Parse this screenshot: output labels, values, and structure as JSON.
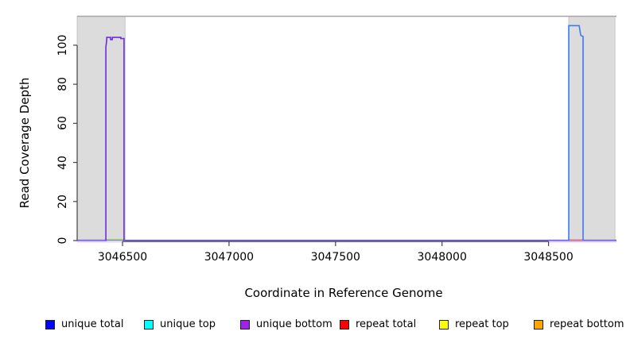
{
  "chart_data": {
    "type": "line",
    "title": "",
    "xlabel": "Coordinate in Reference Genome",
    "ylabel": "Read Coverage Depth",
    "xlim": [
      3046287,
      3048819
    ],
    "ylim": [
      0,
      114.8
    ],
    "xticks": [
      3046500,
      3047000,
      3047500,
      3048000,
      3048500
    ],
    "xtick_labels": [
      "3046500",
      "3047000",
      "3047500",
      "3048000",
      "3048500"
    ],
    "yticks": [
      0,
      20,
      40,
      60,
      80,
      100
    ],
    "ytick_labels": [
      "0",
      "20",
      "40",
      "60",
      "80",
      "100"
    ],
    "grid": false,
    "legend_position": "bottom",
    "frame": {
      "top_line_color": "#a6a6a6",
      "axis_color": "#444444"
    },
    "shaded_regions": [
      {
        "name": "left-gray-region",
        "x0": 3046287,
        "x1": 3046512,
        "color": "#dcdcdc",
        "border": "#bdbdbd"
      },
      {
        "name": "right-gray-region",
        "x0": 3048595,
        "x1": 3048812,
        "color": "#dcdcdc",
        "border": "#bdbdbd"
      }
    ],
    "series": [
      {
        "name": "baseline-shadow",
        "stroke": "#d4c2f8",
        "width": 2.6,
        "points": [
          [
            3046287,
            -0.35
          ],
          [
            3048819,
            -0.35
          ]
        ]
      },
      {
        "name": "zero-coverage-baseline",
        "stroke": "#6b53e6",
        "width": 1.4,
        "points": [
          [
            3046287,
            0.15
          ],
          [
            3048819,
            0.15
          ]
        ]
      },
      {
        "name": "repeat-top-left-segment",
        "stroke": "#efeab4",
        "width": 1.2,
        "points": [
          [
            3046426,
            -0.25
          ],
          [
            3046510,
            -0.25
          ]
        ]
      },
      {
        "name": "unique-top-left-segment",
        "stroke": "#9ade9a",
        "width": 1.4,
        "points": [
          [
            3046426,
            0.55
          ],
          [
            3046510,
            0.55
          ]
        ]
      },
      {
        "name": "repeat-total-right-segment",
        "stroke": "#f26060",
        "width": 1.4,
        "points": [
          [
            3048598,
            0.3
          ],
          [
            3048662,
            0.3
          ]
        ]
      },
      {
        "name": "unique-bottom-left-cluster",
        "stroke": "#6e2be0",
        "width": 1.6,
        "points": [
          [
            3046422,
            0
          ],
          [
            3046422,
            99
          ],
          [
            3046426,
            102.8
          ],
          [
            3046426,
            104
          ],
          [
            3046444,
            104
          ],
          [
            3046444,
            102.9
          ],
          [
            3046452,
            102.9
          ],
          [
            3046452,
            104
          ],
          [
            3046492,
            104
          ],
          [
            3046492,
            103.4
          ],
          [
            3046507,
            103.4
          ],
          [
            3046507,
            0
          ]
        ]
      },
      {
        "name": "unique-top-right-cluster",
        "stroke": "#3d7bf5",
        "width": 1.6,
        "points": [
          [
            3048595,
            0
          ],
          [
            3048595,
            110
          ],
          [
            3048644,
            110
          ],
          [
            3048646,
            108.5
          ],
          [
            3048648,
            107.2
          ],
          [
            3048650,
            106
          ],
          [
            3048652,
            104.9
          ],
          [
            3048662,
            104.5
          ],
          [
            3048662,
            0
          ]
        ]
      }
    ]
  },
  "legend": {
    "items": [
      {
        "label": "unique total",
        "color": "#0000ff"
      },
      {
        "label": "unique top",
        "color": "#00ffff"
      },
      {
        "label": "unique bottom",
        "color": "#a020f0"
      },
      {
        "label": "repeat total",
        "color": "#ff0000"
      },
      {
        "label": "repeat top",
        "color": "#ffff00"
      },
      {
        "label": "repeat bottom",
        "color": "#ffa500"
      }
    ]
  }
}
